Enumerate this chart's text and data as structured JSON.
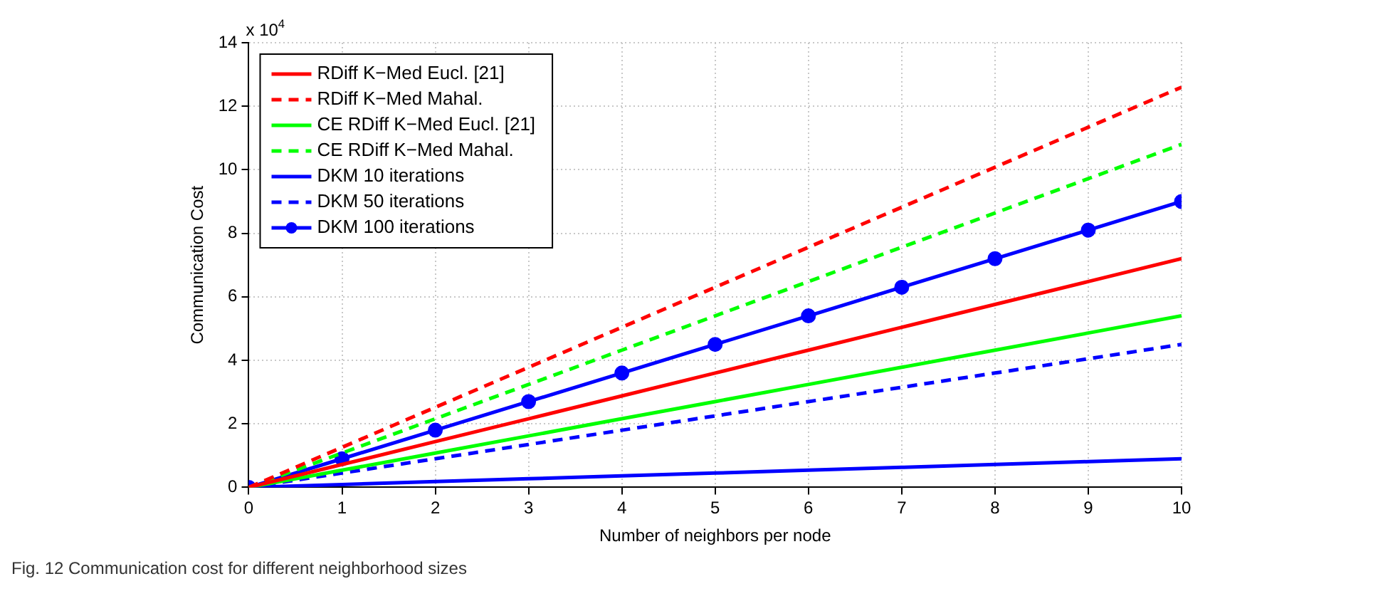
{
  "chart_data": {
    "type": "line",
    "xlabel": "Number of neighbors per node",
    "ylabel": "Communication Cost",
    "x": [
      0,
      1,
      2,
      3,
      4,
      5,
      6,
      7,
      8,
      9,
      10
    ],
    "series": [
      {
        "name": "RDiff K−Med Eucl. [21]",
        "color": "#ff0000",
        "line_style": "solid",
        "marker": "none",
        "values": [
          0,
          0.72,
          1.44,
          2.16,
          2.88,
          3.6,
          4.32,
          5.04,
          5.76,
          6.48,
          7.2
        ]
      },
      {
        "name": "RDiff K−Med Mahal.",
        "color": "#ff0000",
        "line_style": "dashed",
        "marker": "none",
        "values": [
          0,
          1.26,
          2.52,
          3.78,
          5.04,
          6.3,
          7.56,
          8.82,
          10.08,
          11.34,
          12.6
        ]
      },
      {
        "name": "CE RDiff K−Med Eucl. [21]",
        "color": "#00ff00",
        "line_style": "solid",
        "marker": "none",
        "values": [
          0,
          0.54,
          1.08,
          1.62,
          2.16,
          2.7,
          3.24,
          3.78,
          4.32,
          4.86,
          5.4
        ]
      },
      {
        "name": "CE RDiff K−Med Mahal.",
        "color": "#00ff00",
        "line_style": "dashed",
        "marker": "none",
        "values": [
          0,
          1.08,
          2.16,
          3.24,
          4.32,
          5.4,
          6.48,
          7.56,
          8.64,
          9.72,
          10.8
        ]
      },
      {
        "name": "DKM 10 iterations",
        "color": "#0000ff",
        "line_style": "solid",
        "marker": "none",
        "values": [
          0,
          0.09,
          0.18,
          0.27,
          0.36,
          0.45,
          0.54,
          0.63,
          0.72,
          0.81,
          0.9
        ]
      },
      {
        "name": "DKM 50 iterations",
        "color": "#0000ff",
        "line_style": "dashed",
        "marker": "none",
        "values": [
          0,
          0.45,
          0.9,
          1.35,
          1.8,
          2.25,
          2.7,
          3.15,
          3.6,
          4.05,
          4.5
        ]
      },
      {
        "name": "DKM 100 iterations",
        "color": "#0000ff",
        "line_style": "solid",
        "marker": "circle",
        "values": [
          0,
          0.9,
          1.8,
          2.7,
          3.6,
          4.5,
          5.4,
          6.3,
          7.2,
          8.1,
          9.0
        ]
      }
    ],
    "xlim": [
      0,
      10
    ],
    "xticks": [
      0,
      1,
      2,
      3,
      4,
      5,
      6,
      7,
      8,
      9,
      10
    ],
    "ylim": [
      0,
      14
    ],
    "yticks": [
      0,
      2,
      4,
      6,
      8,
      10,
      12,
      14
    ],
    "grid": true,
    "legend": "top left",
    "annotations": [
      "x 10$^{4}$",
      "Fig. 12 Communication cost for different neighborhood sizes"
    ]
  }
}
